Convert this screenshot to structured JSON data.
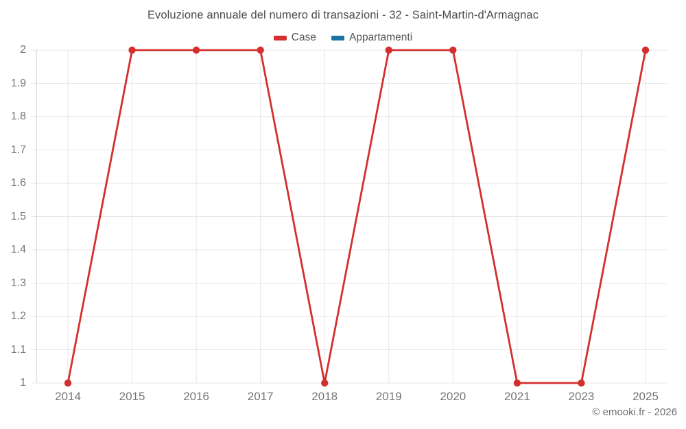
{
  "chart": {
    "title": "Evoluzione annuale del numero di transazioni - 32 - Saint-Martin-d'Armagnac",
    "credit": "© emooki.fr - 2026"
  },
  "colors": {
    "case_red": "#d32f2f",
    "appartamenti_blue": "#1a73a3",
    "gridline": "#e6e6e6",
    "axis_line": "#cccccc",
    "title_text": "#4c4c4c",
    "tick_text": "#757575"
  },
  "chart_data": {
    "type": "line",
    "title": "Evoluzione annuale del numero di transazioni - 32 - Saint-Martin-d'Armagnac",
    "xlabel": "",
    "ylabel": "",
    "categories": [
      "2014",
      "2015",
      "2016",
      "2017",
      "2018",
      "2019",
      "2020",
      "2021",
      "2023",
      "2025"
    ],
    "series": [
      {
        "name": "Case",
        "color": "#d32f2f",
        "values": [
          1,
          2,
          2,
          2,
          1,
          2,
          2,
          1,
          1,
          2
        ]
      },
      {
        "name": "Appartamenti",
        "color": "#1a73a3",
        "values": []
      }
    ],
    "ylim": [
      1,
      2
    ],
    "y_ticks": [
      1,
      1.1,
      1.2,
      1.3,
      1.4,
      1.5,
      1.6,
      1.7,
      1.8,
      1.9,
      2
    ],
    "grid": true,
    "legend_position": "top",
    "marker": "circle"
  }
}
